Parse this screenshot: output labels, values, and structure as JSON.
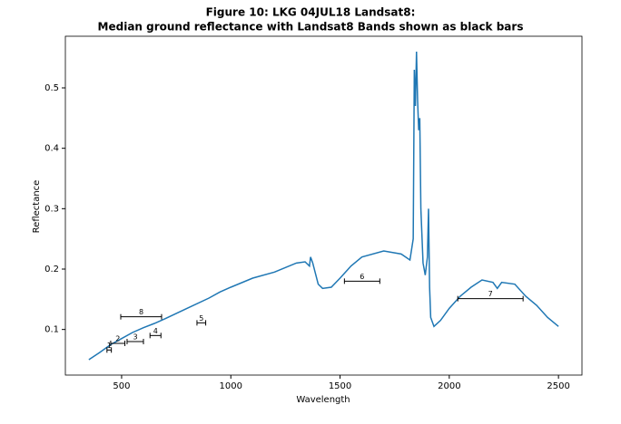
{
  "chart_data": {
    "type": "line",
    "title": "Figure 10: LKG 04JUL18  Landsat8:",
    "subtitle": "Median ground reflectance with Landsat8 Bands shown as black bars",
    "x_label": "Wavelength",
    "y_label": "Reflectance",
    "xlim": [
      242.5,
      2607.5
    ],
    "xticks": [
      500,
      1000,
      1500,
      2000,
      2500
    ],
    "ylim": [
      0.0245,
      0.5855
    ],
    "yticks": [
      0.1,
      0.2,
      0.3,
      0.4,
      0.5
    ],
    "series": [
      {
        "color": "#1f77b4",
        "x": [
          350,
          400,
          450,
          500,
          550,
          600,
          650,
          700,
          800,
          900,
          950,
          1000,
          1100,
          1200,
          1300,
          1340,
          1360,
          1365,
          1375,
          1400,
          1420,
          1460,
          1500,
          1550,
          1600,
          1700,
          1780,
          1820,
          1835,
          1840,
          1845,
          1850,
          1855,
          1860,
          1865,
          1870,
          1880,
          1890,
          1900,
          1905,
          1910,
          1915,
          1930,
          1960,
          2000,
          2050,
          2100,
          2150,
          2200,
          2220,
          2240,
          2300,
          2350,
          2400,
          2450,
          2500
        ],
        "values": [
          0.05,
          0.062,
          0.075,
          0.085,
          0.095,
          0.103,
          0.11,
          0.118,
          0.135,
          0.152,
          0.162,
          0.17,
          0.185,
          0.195,
          0.21,
          0.212,
          0.205,
          0.22,
          0.21,
          0.175,
          0.168,
          0.17,
          0.185,
          0.205,
          0.22,
          0.23,
          0.225,
          0.215,
          0.25,
          0.53,
          0.47,
          0.56,
          0.48,
          0.43,
          0.45,
          0.3,
          0.21,
          0.19,
          0.22,
          0.3,
          0.17,
          0.12,
          0.105,
          0.115,
          0.135,
          0.155,
          0.17,
          0.182,
          0.178,
          0.168,
          0.178,
          0.175,
          0.155,
          0.14,
          0.12,
          0.105
        ]
      }
    ],
    "bands": [
      {
        "label": "1",
        "x": [
          433,
          453
        ],
        "y": 0.066
      },
      {
        "label": "2",
        "x": [
          450,
          515
        ],
        "y": 0.077
      },
      {
        "label": "3",
        "x": [
          525,
          600
        ],
        "y": 0.08
      },
      {
        "label": "4",
        "x": [
          630,
          680
        ],
        "y": 0.09
      },
      {
        "label": "5",
        "x": [
          845,
          885
        ],
        "y": 0.111
      },
      {
        "label": "6",
        "x": [
          1520,
          1682
        ],
        "y": 0.18
      },
      {
        "label": "7",
        "x": [
          2039,
          2338
        ],
        "y": 0.151
      },
      {
        "label": "8",
        "x": [
          496,
          683
        ],
        "y": 0.121
      }
    ]
  }
}
